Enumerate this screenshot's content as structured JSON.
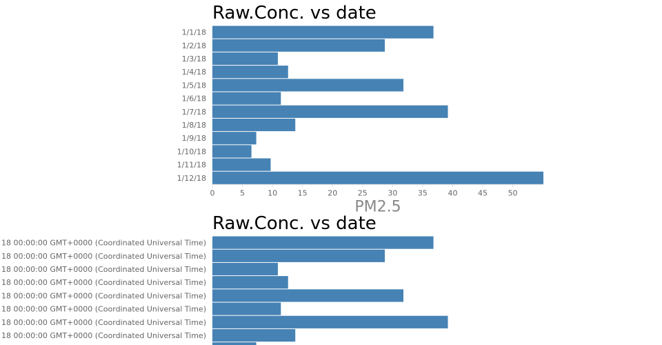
{
  "chart_data": [
    {
      "type": "bar",
      "orientation": "horizontal",
      "title": "Raw.Conc. vs date",
      "xlabel": "PM2.5",
      "ylabel": "",
      "categories": [
        "1/1/18",
        "1/2/18",
        "1/3/18",
        "1/4/18",
        "1/5/18",
        "1/6/18",
        "1/7/18",
        "1/8/18",
        "1/9/18",
        "1/10/18",
        "1/11/18",
        "1/12/18"
      ],
      "values": [
        36.8,
        28.7,
        10.9,
        12.6,
        31.8,
        11.4,
        39.2,
        13.8,
        7.3,
        6.5,
        9.7,
        55.1
      ],
      "xlim": [
        0,
        55.1
      ],
      "ticks": [
        "0",
        "5",
        "10",
        "15",
        "20",
        "25",
        "30",
        "35",
        "40",
        "45",
        "50"
      ],
      "color": "#4682b4"
    },
    {
      "type": "bar",
      "orientation": "horizontal",
      "title": "Raw.Conc. vs date",
      "xlabel": "",
      "ylabel": "",
      "categories": [
        "18 00:00:00 GMT+0000 (Coordinated Universal Time)",
        "18 00:00:00 GMT+0000 (Coordinated Universal Time)",
        "18 00:00:00 GMT+0000 (Coordinated Universal Time)",
        "18 00:00:00 GMT+0000 (Coordinated Universal Time)",
        "18 00:00:00 GMT+0000 (Coordinated Universal Time)",
        "18 00:00:00 GMT+0000 (Coordinated Universal Time)",
        "18 00:00:00 GMT+0000 (Coordinated Universal Time)",
        "18 00:00:00 GMT+0000 (Coordinated Universal Time)",
        ""
      ],
      "values": [
        36.8,
        28.7,
        10.9,
        12.6,
        31.8,
        11.4,
        39.2,
        13.8,
        7.3
      ],
      "xlim": [
        0,
        55.1
      ],
      "color": "#4682b4"
    }
  ]
}
